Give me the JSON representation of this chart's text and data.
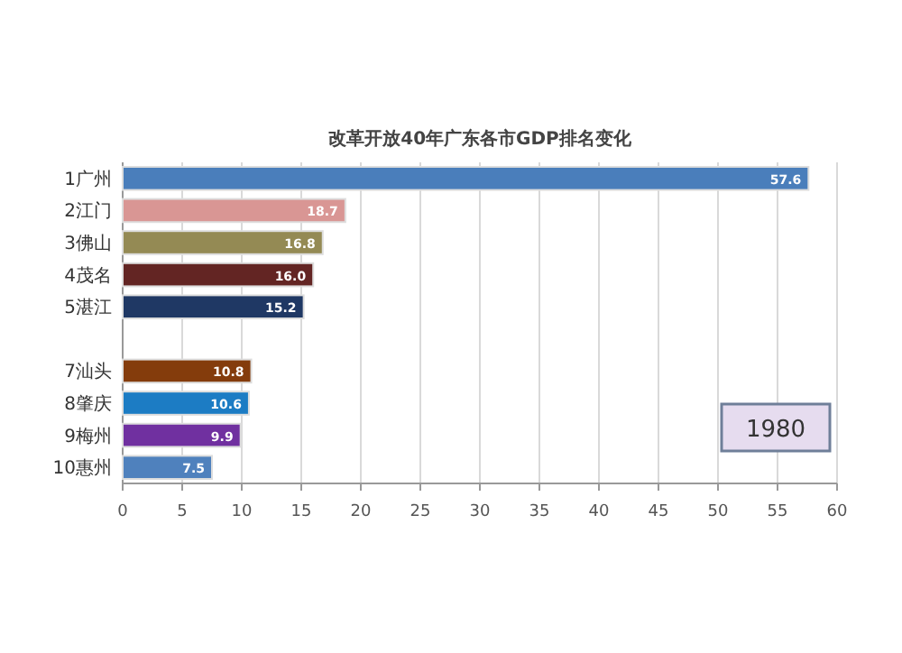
{
  "chart_data": {
    "type": "bar",
    "orientation": "horizontal",
    "title": "改革开放40年广东各市GDP排名变化",
    "categories": [
      "1广州",
      "2江门",
      "3佛山",
      "4茂名",
      "5湛江",
      null,
      "7汕头",
      "8肇庆",
      "9梅州",
      "10惠州"
    ],
    "values": [
      57.6,
      18.7,
      16.8,
      16.0,
      15.2,
      null,
      10.8,
      10.6,
      9.9,
      7.5
    ],
    "value_labels": [
      "57.6",
      "18.7",
      "16.8",
      "16.0",
      "15.2",
      null,
      "10.8",
      "10.6",
      "9.9",
      "7.5"
    ],
    "colors": [
      "#4a7ebb",
      "#d99694",
      "#948a54",
      "#632523",
      "#1f3864",
      null,
      "#843c0c",
      "#1c7cc4",
      "#7030a0",
      "#4f81bd"
    ],
    "xlim": [
      0,
      60
    ],
    "xticks": [
      0,
      5,
      10,
      15,
      20,
      25,
      30,
      35,
      40,
      45,
      50,
      55,
      60
    ],
    "grid": "x",
    "annotations": [
      "1980"
    ]
  }
}
